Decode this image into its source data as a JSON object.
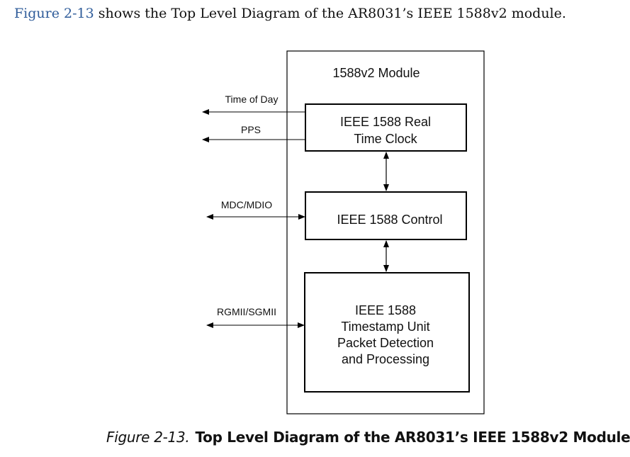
{
  "intro": {
    "link_text": "Figure 2-13",
    "rest": " shows the Top Level Diagram of the AR8031’s IEEE 1588v2 module."
  },
  "diagram": {
    "module_title": "1588v2 Module",
    "rtc_lines": [
      "IEEE 1588 Real",
      "Time Clock"
    ],
    "control_label": "IEEE 1588 Control",
    "tsu_lines": [
      "IEEE 1588",
      "Timestamp Unit",
      "Packet Detection",
      "and Processing"
    ],
    "signals": {
      "time_of_day": "Time of Day",
      "pps": "PPS",
      "mdc_mdio": "MDC/MDIO",
      "rgmii_sgmii": "RGMII/SGMII"
    }
  },
  "caption": {
    "number": "Figure 2-13.",
    "title": "Top Level Diagram of the AR8031’s IEEE 1588v2 Module"
  },
  "colors": {
    "link": "#2f5c9a",
    "line": "#000000"
  }
}
